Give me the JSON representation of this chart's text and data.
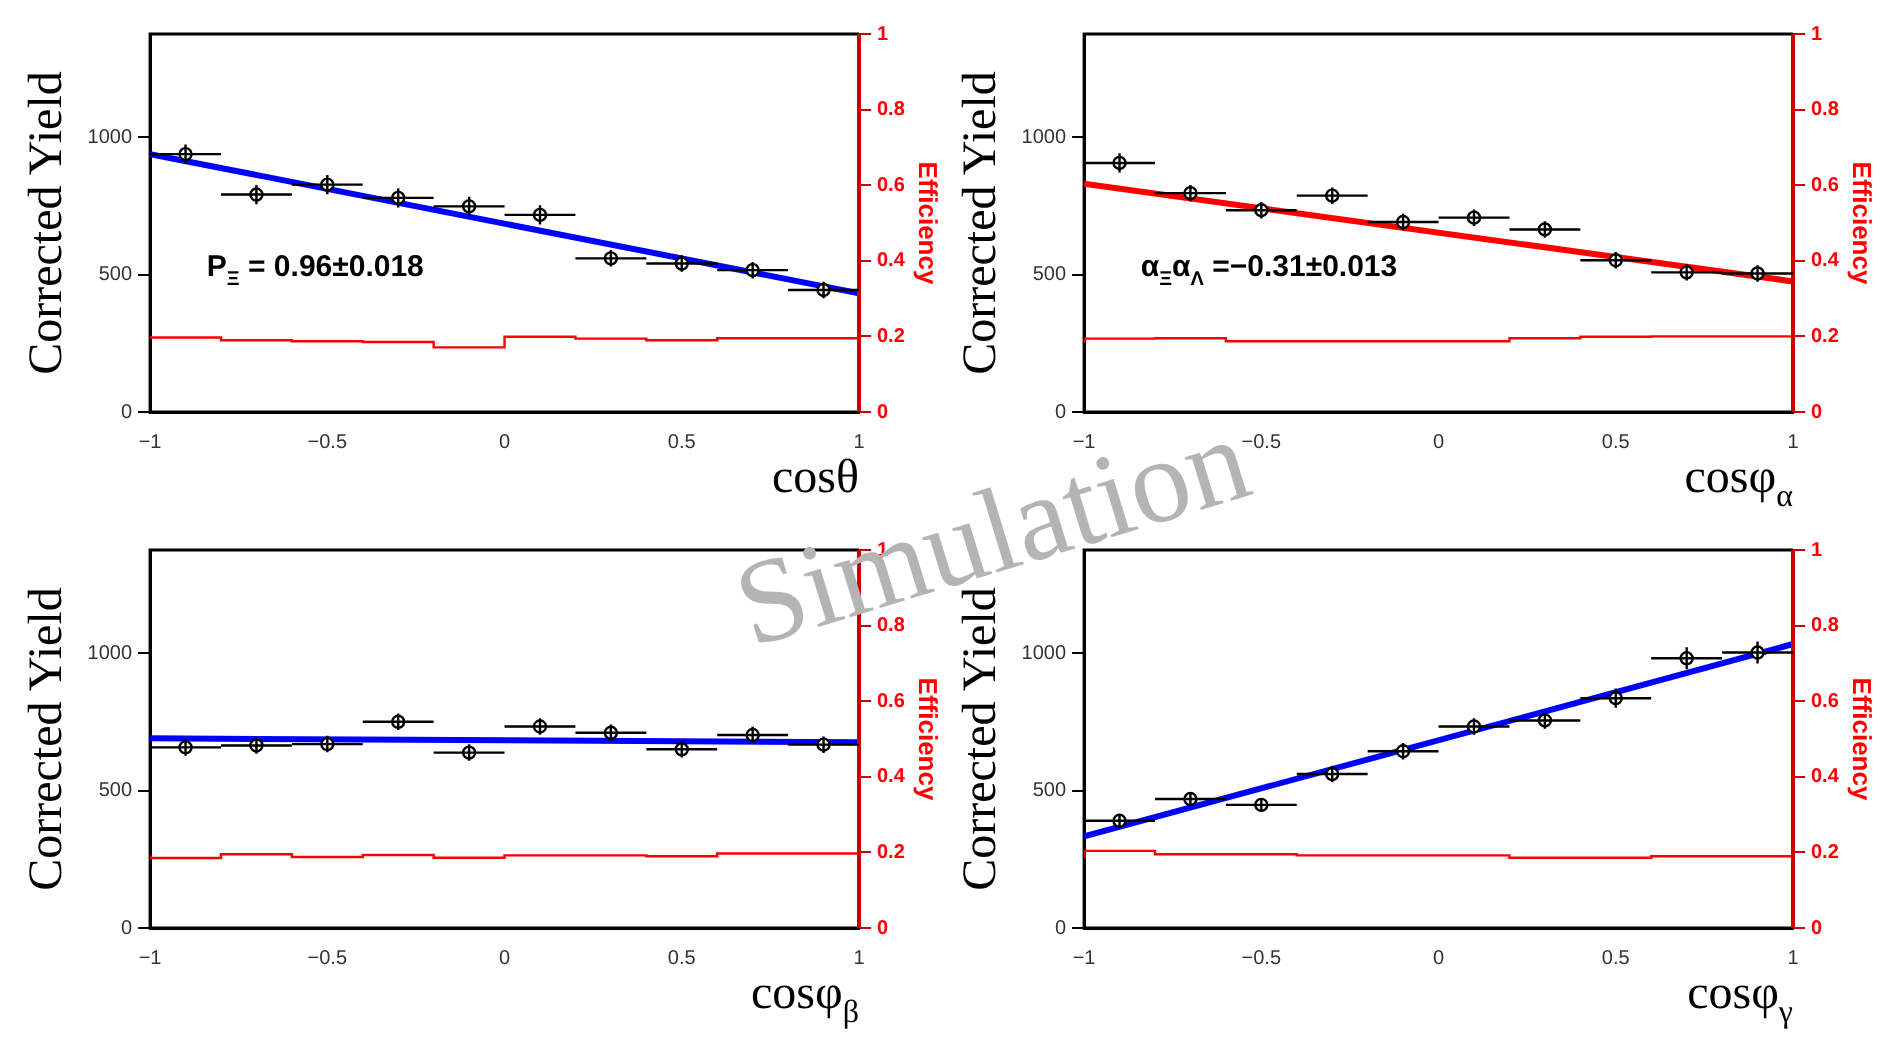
{
  "chart_data": [
    {
      "type": "scatter",
      "xlabel": "cosθ",
      "ylabel": "Corrected Yield",
      "y2label": "Efficiency",
      "xlim": [
        -1,
        1
      ],
      "xticks": [
        -1,
        -0.5,
        0,
        0.5,
        1
      ],
      "ylim": [
        0,
        1375
      ],
      "yticks": [
        0,
        500,
        1000
      ],
      "y2lim": [
        0,
        1
      ],
      "y2ticks": [
        0,
        0.2,
        0.4,
        0.6,
        0.8,
        1
      ],
      "grid": false,
      "legend": false,
      "marker": "circle",
      "annotations": [
        "P$_{Ξ}$ = 0.96±0.018",
        "Simulation"
      ],
      "series": [
        {
          "color": "#000000",
          "x": [
            -0.9,
            -0.7,
            -0.5,
            -0.3,
            -0.1,
            0.1,
            0.3,
            0.5,
            0.7,
            0.9
          ],
          "values": [
            938,
            791,
            827,
            779,
            748,
            717,
            559,
            540,
            516,
            444
          ],
          "errors": [
            35,
            35,
            35,
            35,
            35,
            35,
            30,
            30,
            30,
            30
          ],
          "xerrors": [
            0.1,
            0.1,
            0.1,
            0.1,
            0.1,
            0.1,
            0.1,
            0.1,
            0.1,
            0.1
          ]
        },
        {
          "type": "line",
          "marker": "none",
          "color": "#0000ff",
          "line_style": "solid",
          "x": [
            -1,
            1
          ],
          "values": [
            938,
            432
          ]
        },
        {
          "type": "step",
          "marker": "none",
          "axis": "y2",
          "color": "#ff0000",
          "x": [
            -1,
            -0.8,
            -0.6,
            -0.4,
            -0.2,
            0,
            0.2,
            0.4,
            0.6,
            0.8,
            1
          ],
          "values": [
            0.194,
            0.197,
            0.19,
            0.187,
            0.185,
            0.171,
            0.199,
            0.194,
            0.19,
            0.195,
            0.195
          ]
        }
      ]
    },
    {
      "type": "scatter",
      "xlabel": "cosφ$_{α}$",
      "ylabel": "Corrected Yield",
      "y2label": "Efficiency",
      "xlim": [
        -1,
        1
      ],
      "xticks": [
        -1,
        -0.5,
        0,
        0.5,
        1
      ],
      "ylim": [
        0,
        1375
      ],
      "yticks": [
        0,
        500,
        1000
      ],
      "y2lim": [
        0,
        1
      ],
      "y2ticks": [
        0,
        0.2,
        0.4,
        0.6,
        0.8,
        1
      ],
      "grid": false,
      "legend": false,
      "marker": "circle",
      "annotations": [
        "α$_{Ξ}$α$_{Λ}$ =−0.31±0.013"
      ],
      "series": [
        {
          "color": "#000000",
          "x": [
            -0.9,
            -0.7,
            -0.5,
            -0.3,
            -0.1,
            0.1,
            0.3,
            0.5,
            0.7,
            0.9
          ],
          "values": [
            906,
            796,
            734,
            787,
            691,
            707,
            664,
            552,
            508,
            504
          ],
          "errors": [
            35,
            30,
            30,
            30,
            30,
            30,
            30,
            30,
            30,
            30
          ],
          "xerrors": [
            0.1,
            0.1,
            0.1,
            0.1,
            0.1,
            0.1,
            0.1,
            0.1,
            0.1,
            0.1
          ]
        },
        {
          "type": "line",
          "marker": "none",
          "color": "#ff0000",
          "line_style": "solid",
          "x": [
            -1,
            1
          ],
          "values": [
            830,
            475
          ]
        },
        {
          "type": "step",
          "marker": "none",
          "axis": "y2",
          "color": "#ff0000",
          "x": [
            -1,
            -0.8,
            -0.6,
            -0.4,
            -0.2,
            0,
            0.2,
            0.4,
            0.6,
            0.8,
            1
          ],
          "values": [
            0.183,
            0.194,
            0.195,
            0.187,
            0.187,
            0.187,
            0.187,
            0.195,
            0.199,
            0.2,
            0.2
          ]
        }
      ]
    },
    {
      "type": "scatter",
      "xlabel": "cosφ$_{β}$",
      "ylabel": "Corrected Yield",
      "y2label": "Efficiency",
      "xlim": [
        -1,
        1
      ],
      "xticks": [
        -1,
        -0.5,
        0,
        0.5,
        1
      ],
      "ylim": [
        0,
        1375
      ],
      "yticks": [
        0,
        500,
        1000
      ],
      "y2lim": [
        0,
        1
      ],
      "y2ticks": [
        0,
        0.2,
        0.4,
        0.6,
        0.8,
        1
      ],
      "grid": false,
      "legend": false,
      "marker": "circle",
      "series": [
        {
          "color": "#000000",
          "x": [
            -0.9,
            -0.7,
            -0.5,
            -0.3,
            -0.1,
            0.1,
            0.3,
            0.5,
            0.7,
            0.9
          ],
          "values": [
            657,
            664,
            669,
            750,
            638,
            733,
            710,
            650,
            702,
            667
          ],
          "errors": [
            30,
            30,
            30,
            30,
            30,
            30,
            30,
            30,
            30,
            30
          ],
          "xerrors": [
            0.1,
            0.1,
            0.1,
            0.1,
            0.1,
            0.1,
            0.1,
            0.1,
            0.1,
            0.1
          ]
        },
        {
          "type": "line",
          "marker": "none",
          "color": "#0000ff",
          "line_style": "solid",
          "x": [
            -1,
            1
          ],
          "values": [
            690,
            676
          ]
        },
        {
          "type": "step",
          "marker": "none",
          "axis": "y2",
          "color": "#ff0000",
          "x": [
            -1,
            -0.8,
            -0.6,
            -0.4,
            -0.2,
            0,
            0.2,
            0.4,
            0.6,
            0.8,
            1
          ],
          "values": [
            0.192,
            0.185,
            0.195,
            0.188,
            0.193,
            0.186,
            0.192,
            0.192,
            0.19,
            0.197,
            0.197
          ]
        }
      ]
    },
    {
      "type": "scatter",
      "xlabel": "cosφ$_{γ}$",
      "ylabel": "Corrected Yield",
      "y2label": "Efficiency",
      "xlim": [
        -1,
        1
      ],
      "xticks": [
        -1,
        -0.5,
        0,
        0.5,
        1
      ],
      "ylim": [
        0,
        1375
      ],
      "yticks": [
        0,
        500,
        1000
      ],
      "y2lim": [
        0,
        1
      ],
      "y2ticks": [
        0,
        0.2,
        0.4,
        0.6,
        0.8,
        1
      ],
      "grid": false,
      "legend": false,
      "marker": "circle",
      "series": [
        {
          "color": "#000000",
          "x": [
            -0.9,
            -0.7,
            -0.5,
            -0.3,
            -0.1,
            0.1,
            0.3,
            0.5,
            0.7,
            0.9
          ],
          "values": [
            390,
            469,
            448,
            560,
            643,
            733,
            755,
            836,
            981,
            1002
          ],
          "errors": [
            25,
            25,
            25,
            30,
            30,
            30,
            30,
            35,
            40,
            40
          ],
          "xerrors": [
            0.1,
            0.1,
            0.1,
            0.1,
            0.1,
            0.1,
            0.1,
            0.1,
            0.1,
            0.1
          ]
        },
        {
          "type": "line",
          "marker": "none",
          "color": "#0000ff",
          "line_style": "solid",
          "x": [
            -1,
            1
          ],
          "values": [
            333,
            1033
          ]
        },
        {
          "type": "step",
          "marker": "none",
          "axis": "y2",
          "color": "#ff0000",
          "x": [
            -1,
            -0.8,
            -0.6,
            -0.4,
            -0.2,
            0,
            0.2,
            0.4,
            0.6,
            0.8,
            1
          ],
          "values": [
            0.185,
            0.204,
            0.195,
            0.195,
            0.192,
            0.192,
            0.192,
            0.186,
            0.186,
            0.19,
            0.19
          ]
        }
      ]
    }
  ]
}
